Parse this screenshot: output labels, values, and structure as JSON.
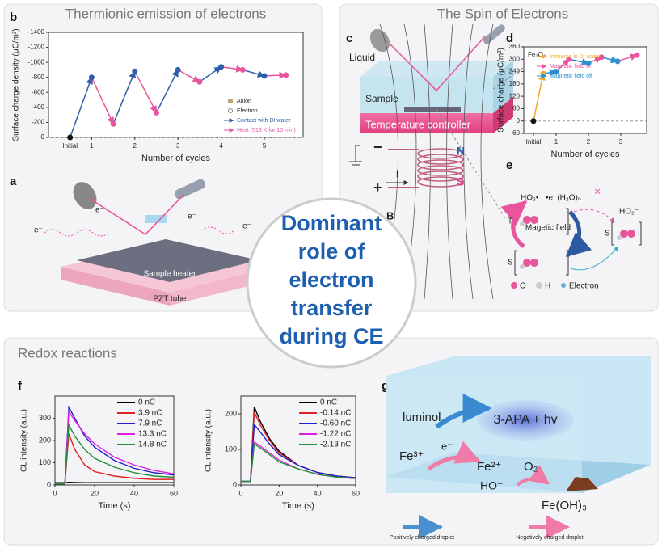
{
  "panel_titles": {
    "thermionic": "Thermionic emission of electrons",
    "spin": "The Spin of Electrons",
    "redox": "Redox reactions"
  },
  "center_text": [
    "Dominant",
    "role of",
    "electron",
    "transfer",
    "during CE"
  ],
  "panel_labels": {
    "a": "a",
    "b": "b",
    "c": "c",
    "d": "d",
    "e": "e",
    "f": "f",
    "g": "g"
  },
  "schematic_a": {
    "heater": "Sample heater",
    "tube": "PZT tube",
    "electron": "e⁻"
  },
  "schematic_c": {
    "liquid": "Liquid",
    "sample": "Sample",
    "controller": "Temperature controller",
    "north": "N",
    "south": "S",
    "current": "I",
    "field": "B",
    "minus": "−",
    "plus": "+"
  },
  "diagram_e": {
    "triplet": "T",
    "singlet": "S",
    "singlet_right": "S",
    "ho2_radical": "HO₂•",
    "hydrated_electron": "•e⁻(H₂O)ₙ",
    "field": "Magetic field",
    "ho2_anion": "HO₂⁻",
    "cross": "×",
    "oxygen": "O",
    "hydrogen": "H",
    "electron": "Electron"
  },
  "diagram_g": {
    "luminol": "luminol",
    "product": "3-APA + hv",
    "fe3": "Fe³⁺",
    "e": "e⁻",
    "fe2": "Fe²⁺",
    "o2": "O₂",
    "ho": "HO⁻",
    "feoh3": "Fe(OH)₃",
    "positive": "Positively charged droplet",
    "negative": "Negatively charged droplet"
  },
  "chart_data": [
    {
      "type": "cycle",
      "xlabel": "Number of cycles",
      "ylabel": "Surface charge density (μC/m²)",
      "xlim": [
        0,
        5.9
      ],
      "xticks": [
        {
          "value": 0.5,
          "label": "Initial"
        },
        1,
        2,
        3,
        4,
        5
      ],
      "ylim": [
        0,
        -1400
      ],
      "yticks": [
        0,
        -200,
        -400,
        -600,
        -800,
        -1000,
        -1200,
        -1400
      ],
      "initial": {
        "x": 0.5,
        "value": 0,
        "color": "#111111"
      },
      "series": [
        {
          "name": "Contact with DI water",
          "color": "#2f5fa8",
          "x": [
            1,
            2,
            3,
            4,
            5
          ],
          "values": [
            -800,
            -880,
            -900,
            -940,
            -820
          ]
        },
        {
          "name": "Heat (513 K for 10 min)",
          "color": "#e8559c",
          "x": [
            1.5,
            2.5,
            3.5,
            4.5,
            5.5
          ],
          "values": [
            -180,
            -330,
            -740,
            -900,
            -830
          ]
        }
      ],
      "markers_legend": [
        {
          "name": "Anion",
          "color": "#f0a830"
        },
        {
          "name": "Electron",
          "color": "#ffffff"
        }
      ]
    },
    {
      "type": "cycle",
      "xlabel": "Number of cycles",
      "ylabel": "Surface charge (μC/m²)",
      "annotation": "Fe₃O₄",
      "xlim": [
        0,
        3.8
      ],
      "xticks": [
        {
          "value": 0.3,
          "label": "Initial"
        },
        1,
        2,
        3
      ],
      "ylim": [
        -60,
        360
      ],
      "yticks": [
        -60,
        0,
        60,
        120,
        180,
        240,
        300,
        360
      ],
      "initial": {
        "x": 0.3,
        "value": 0,
        "color": "#111111"
      },
      "series": [
        {
          "name": "Immerse in DI water",
          "color": "#f0a830",
          "x": [
            0.6
          ],
          "values": [
            230
          ]
        },
        {
          "name": "Magnetic field on",
          "color": "#e8559c",
          "x": [
            1.4,
            2.4,
            3.5
          ],
          "values": [
            300,
            310,
            320
          ]
        },
        {
          "name": "Magnetic field off",
          "color": "#2a8fd0",
          "x": [
            1.0,
            2.0,
            2.9
          ],
          "values": [
            240,
            280,
            290
          ]
        }
      ]
    },
    {
      "type": "line",
      "xlabel": "Time (s)",
      "ylabel": "CL intensity (a.u.)",
      "xlim": [
        0,
        60
      ],
      "xticks": [
        0,
        20,
        40,
        60
      ],
      "ylim": [
        0,
        400
      ],
      "yticks": [
        0,
        100,
        200,
        300
      ],
      "x": [
        0,
        5,
        7,
        10,
        15,
        20,
        30,
        40,
        50,
        60
      ],
      "series": [
        {
          "name": "0 nC",
          "color": "#000000",
          "values": [
            10,
            10,
            12,
            11,
            10,
            10,
            10,
            10,
            10,
            10
          ]
        },
        {
          "name": "3.9 nC",
          "color": "#e02020",
          "values": [
            5,
            5,
            230,
            160,
            90,
            60,
            40,
            30,
            25,
            25
          ]
        },
        {
          "name": "7.9 nC",
          "color": "#2020d0",
          "values": [
            5,
            5,
            350,
            300,
            220,
            170,
            110,
            75,
            55,
            45
          ]
        },
        {
          "name": "13.3 nC",
          "color": "#e020e0",
          "values": [
            5,
            5,
            330,
            290,
            230,
            185,
            125,
            90,
            65,
            50
          ]
        },
        {
          "name": "14.8 nC",
          "color": "#20903a",
          "values": [
            5,
            5,
            270,
            220,
            160,
            120,
            80,
            55,
            40,
            35
          ]
        }
      ]
    },
    {
      "type": "line",
      "xlabel": "Time (s)",
      "ylabel": "CL intensity (a.u.)",
      "xlim": [
        0,
        60
      ],
      "xticks": [
        0,
        20,
        40,
        60
      ],
      "ylim": [
        0,
        250
      ],
      "yticks": [
        0,
        100,
        200
      ],
      "x": [
        0,
        5,
        7,
        10,
        15,
        20,
        30,
        40,
        50,
        60
      ],
      "series": [
        {
          "name": "0 nC",
          "color": "#000000",
          "values": [
            10,
            10,
            220,
            180,
            130,
            95,
            55,
            35,
            25,
            20
          ]
        },
        {
          "name": "-0.14 nC",
          "color": "#e02020",
          "values": [
            10,
            10,
            205,
            170,
            125,
            90,
            55,
            35,
            25,
            20
          ]
        },
        {
          "name": "-0.60 nC",
          "color": "#2020d0",
          "values": [
            10,
            10,
            170,
            150,
            115,
            85,
            55,
            35,
            25,
            20
          ]
        },
        {
          "name": "-1.22 nC",
          "color": "#e020e0",
          "values": [
            10,
            10,
            120,
            110,
            90,
            70,
            45,
            30,
            22,
            18
          ]
        },
        {
          "name": "-2.13 nC",
          "color": "#20903a",
          "values": [
            10,
            10,
            115,
            105,
            85,
            65,
            45,
            30,
            22,
            18
          ]
        }
      ]
    }
  ]
}
